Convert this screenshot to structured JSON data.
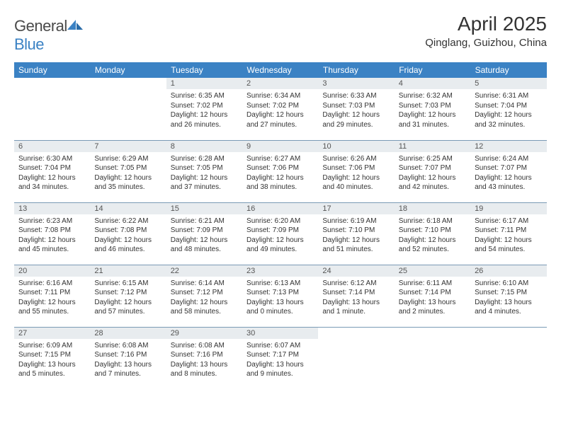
{
  "brand": {
    "part1": "General",
    "part2": "Blue"
  },
  "title": "April 2025",
  "location": "Qinglang, Guizhou, China",
  "colors": {
    "header_bg": "#3b82c4",
    "header_text": "#ffffff",
    "daynum_bg": "#e8ecef",
    "daynum_text": "#555555",
    "body_text": "#333333",
    "row_border": "#7a9ab5",
    "page_bg": "#ffffff"
  },
  "typography": {
    "title_fontsize": 28,
    "subtitle_fontsize": 15,
    "dayheader_fontsize": 12,
    "daynum_fontsize": 11,
    "daytext_fontsize": 10
  },
  "day_headers": [
    "Sunday",
    "Monday",
    "Tuesday",
    "Wednesday",
    "Thursday",
    "Friday",
    "Saturday"
  ],
  "weeks": [
    [
      null,
      null,
      {
        "n": "1",
        "sr": "Sunrise: 6:35 AM",
        "ss": "Sunset: 7:02 PM",
        "d1": "Daylight: 12 hours",
        "d2": "and 26 minutes."
      },
      {
        "n": "2",
        "sr": "Sunrise: 6:34 AM",
        "ss": "Sunset: 7:02 PM",
        "d1": "Daylight: 12 hours",
        "d2": "and 27 minutes."
      },
      {
        "n": "3",
        "sr": "Sunrise: 6:33 AM",
        "ss": "Sunset: 7:03 PM",
        "d1": "Daylight: 12 hours",
        "d2": "and 29 minutes."
      },
      {
        "n": "4",
        "sr": "Sunrise: 6:32 AM",
        "ss": "Sunset: 7:03 PM",
        "d1": "Daylight: 12 hours",
        "d2": "and 31 minutes."
      },
      {
        "n": "5",
        "sr": "Sunrise: 6:31 AM",
        "ss": "Sunset: 7:04 PM",
        "d1": "Daylight: 12 hours",
        "d2": "and 32 minutes."
      }
    ],
    [
      {
        "n": "6",
        "sr": "Sunrise: 6:30 AM",
        "ss": "Sunset: 7:04 PM",
        "d1": "Daylight: 12 hours",
        "d2": "and 34 minutes."
      },
      {
        "n": "7",
        "sr": "Sunrise: 6:29 AM",
        "ss": "Sunset: 7:05 PM",
        "d1": "Daylight: 12 hours",
        "d2": "and 35 minutes."
      },
      {
        "n": "8",
        "sr": "Sunrise: 6:28 AM",
        "ss": "Sunset: 7:05 PM",
        "d1": "Daylight: 12 hours",
        "d2": "and 37 minutes."
      },
      {
        "n": "9",
        "sr": "Sunrise: 6:27 AM",
        "ss": "Sunset: 7:06 PM",
        "d1": "Daylight: 12 hours",
        "d2": "and 38 minutes."
      },
      {
        "n": "10",
        "sr": "Sunrise: 6:26 AM",
        "ss": "Sunset: 7:06 PM",
        "d1": "Daylight: 12 hours",
        "d2": "and 40 minutes."
      },
      {
        "n": "11",
        "sr": "Sunrise: 6:25 AM",
        "ss": "Sunset: 7:07 PM",
        "d1": "Daylight: 12 hours",
        "d2": "and 42 minutes."
      },
      {
        "n": "12",
        "sr": "Sunrise: 6:24 AM",
        "ss": "Sunset: 7:07 PM",
        "d1": "Daylight: 12 hours",
        "d2": "and 43 minutes."
      }
    ],
    [
      {
        "n": "13",
        "sr": "Sunrise: 6:23 AM",
        "ss": "Sunset: 7:08 PM",
        "d1": "Daylight: 12 hours",
        "d2": "and 45 minutes."
      },
      {
        "n": "14",
        "sr": "Sunrise: 6:22 AM",
        "ss": "Sunset: 7:08 PM",
        "d1": "Daylight: 12 hours",
        "d2": "and 46 minutes."
      },
      {
        "n": "15",
        "sr": "Sunrise: 6:21 AM",
        "ss": "Sunset: 7:09 PM",
        "d1": "Daylight: 12 hours",
        "d2": "and 48 minutes."
      },
      {
        "n": "16",
        "sr": "Sunrise: 6:20 AM",
        "ss": "Sunset: 7:09 PM",
        "d1": "Daylight: 12 hours",
        "d2": "and 49 minutes."
      },
      {
        "n": "17",
        "sr": "Sunrise: 6:19 AM",
        "ss": "Sunset: 7:10 PM",
        "d1": "Daylight: 12 hours",
        "d2": "and 51 minutes."
      },
      {
        "n": "18",
        "sr": "Sunrise: 6:18 AM",
        "ss": "Sunset: 7:10 PM",
        "d1": "Daylight: 12 hours",
        "d2": "and 52 minutes."
      },
      {
        "n": "19",
        "sr": "Sunrise: 6:17 AM",
        "ss": "Sunset: 7:11 PM",
        "d1": "Daylight: 12 hours",
        "d2": "and 54 minutes."
      }
    ],
    [
      {
        "n": "20",
        "sr": "Sunrise: 6:16 AM",
        "ss": "Sunset: 7:11 PM",
        "d1": "Daylight: 12 hours",
        "d2": "and 55 minutes."
      },
      {
        "n": "21",
        "sr": "Sunrise: 6:15 AM",
        "ss": "Sunset: 7:12 PM",
        "d1": "Daylight: 12 hours",
        "d2": "and 57 minutes."
      },
      {
        "n": "22",
        "sr": "Sunrise: 6:14 AM",
        "ss": "Sunset: 7:12 PM",
        "d1": "Daylight: 12 hours",
        "d2": "and 58 minutes."
      },
      {
        "n": "23",
        "sr": "Sunrise: 6:13 AM",
        "ss": "Sunset: 7:13 PM",
        "d1": "Daylight: 13 hours",
        "d2": "and 0 minutes."
      },
      {
        "n": "24",
        "sr": "Sunrise: 6:12 AM",
        "ss": "Sunset: 7:14 PM",
        "d1": "Daylight: 13 hours",
        "d2": "and 1 minute."
      },
      {
        "n": "25",
        "sr": "Sunrise: 6:11 AM",
        "ss": "Sunset: 7:14 PM",
        "d1": "Daylight: 13 hours",
        "d2": "and 2 minutes."
      },
      {
        "n": "26",
        "sr": "Sunrise: 6:10 AM",
        "ss": "Sunset: 7:15 PM",
        "d1": "Daylight: 13 hours",
        "d2": "and 4 minutes."
      }
    ],
    [
      {
        "n": "27",
        "sr": "Sunrise: 6:09 AM",
        "ss": "Sunset: 7:15 PM",
        "d1": "Daylight: 13 hours",
        "d2": "and 5 minutes."
      },
      {
        "n": "28",
        "sr": "Sunrise: 6:08 AM",
        "ss": "Sunset: 7:16 PM",
        "d1": "Daylight: 13 hours",
        "d2": "and 7 minutes."
      },
      {
        "n": "29",
        "sr": "Sunrise: 6:08 AM",
        "ss": "Sunset: 7:16 PM",
        "d1": "Daylight: 13 hours",
        "d2": "and 8 minutes."
      },
      {
        "n": "30",
        "sr": "Sunrise: 6:07 AM",
        "ss": "Sunset: 7:17 PM",
        "d1": "Daylight: 13 hours",
        "d2": "and 9 minutes."
      },
      null,
      null,
      null
    ]
  ]
}
